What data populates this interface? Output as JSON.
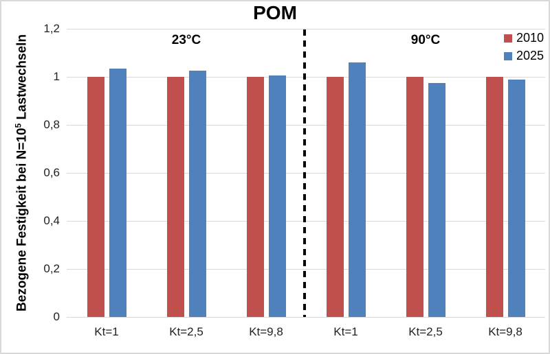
{
  "chart_data": {
    "type": "bar",
    "title": "POM",
    "ylabel": {
      "prefix": "Bezogene Festigkeit bei N=10",
      "sup": "5",
      "suffix": " Lastwechseln"
    },
    "ylim": [
      0,
      1.2
    ],
    "grid": true,
    "grid_color": "#d9d9d9",
    "yticks": [
      {
        "v": 0,
        "label": "0"
      },
      {
        "v": 0.2,
        "label": "0,2"
      },
      {
        "v": 0.4,
        "label": "0,4"
      },
      {
        "v": 0.6,
        "label": "0,6"
      },
      {
        "v": 0.8,
        "label": "0,8"
      },
      {
        "v": 1,
        "label": "1"
      },
      {
        "v": 1.2,
        "label": "1,2"
      }
    ],
    "categories": [
      "Kt=1",
      "Kt=2,5",
      "Kt=9,8",
      "Kt=1",
      "Kt=2,5",
      "Kt=9,8"
    ],
    "sections": [
      {
        "label": "23°C",
        "span": [
          0,
          2
        ]
      },
      {
        "label": "90°C",
        "span": [
          3,
          5
        ]
      }
    ],
    "divider_after_index": 2,
    "legend_position": "top-right",
    "series": [
      {
        "name": "2010",
        "color": "#C0504D",
        "values": [
          1,
          1,
          1,
          1,
          1,
          1
        ]
      },
      {
        "name": "2025",
        "color": "#4F81BD",
        "values": [
          1.035,
          1.025,
          1.005,
          1.06,
          0.975,
          0.99
        ]
      }
    ]
  }
}
